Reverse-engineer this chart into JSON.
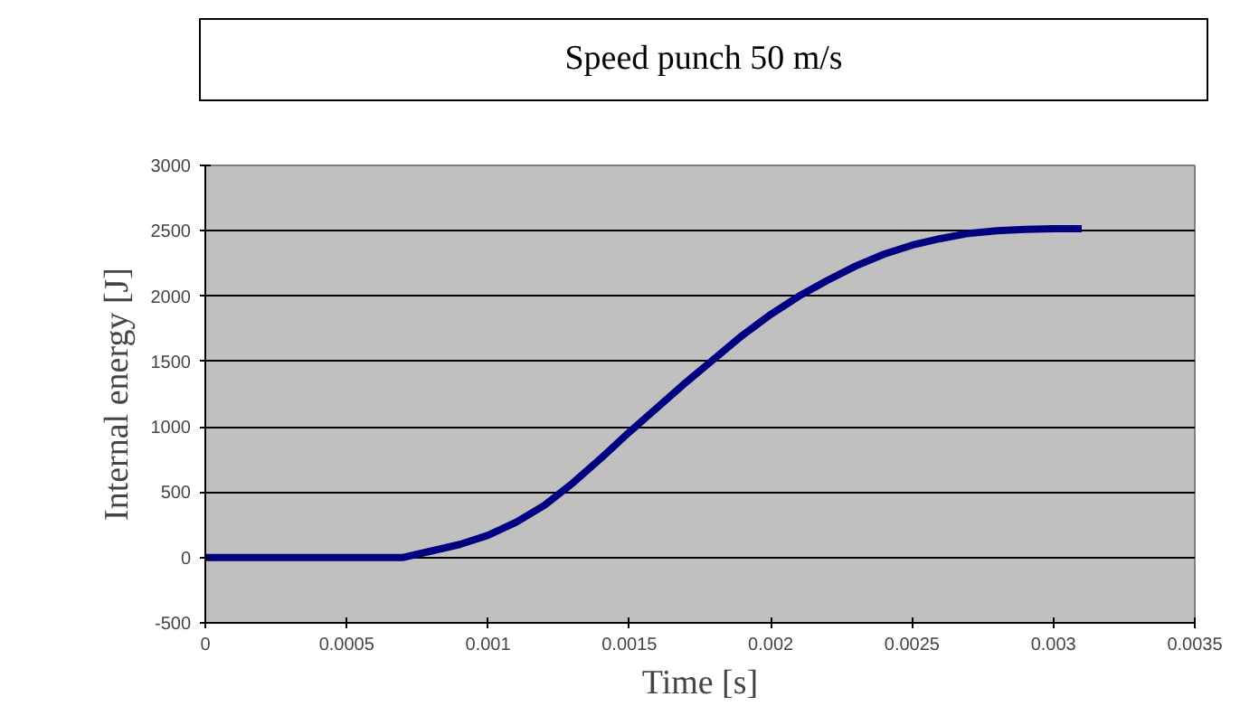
{
  "chart_data": {
    "type": "line",
    "title": "Speed punch 50 m/s",
    "xlabel": "Time [s]",
    "ylabel": "Internal energy [J]",
    "x": [
      0,
      0.0002,
      0.0004,
      0.0005,
      0.0006,
      0.0007,
      0.0008,
      0.0009,
      0.001,
      0.0011,
      0.0012,
      0.0013,
      0.0014,
      0.0015,
      0.0016,
      0.0017,
      0.0018,
      0.0019,
      0.002,
      0.0021,
      0.0022,
      0.0023,
      0.0024,
      0.0025,
      0.0026,
      0.0027,
      0.0028,
      0.0029,
      0.003,
      0.0031
    ],
    "series": [
      {
        "color": "#000080",
        "values": [
          0,
          0,
          0,
          0,
          0,
          0,
          50,
          100,
          170,
          270,
          400,
          570,
          760,
          960,
          1150,
          1340,
          1520,
          1700,
          1860,
          2000,
          2120,
          2230,
          2320,
          2390,
          2440,
          2480,
          2500,
          2510,
          2515,
          2515
        ]
      }
    ],
    "xlim": [
      0,
      0.0035
    ],
    "xticks": [
      0,
      0.0005,
      0.001,
      0.0015,
      0.002,
      0.0025,
      0.003,
      0.0035
    ],
    "ylim": [
      -500,
      3000
    ],
    "yticks": [
      -500,
      0,
      500,
      1000,
      1500,
      2000,
      2500,
      3000
    ],
    "grid": "y",
    "marker": "none",
    "line_style": "solid"
  }
}
